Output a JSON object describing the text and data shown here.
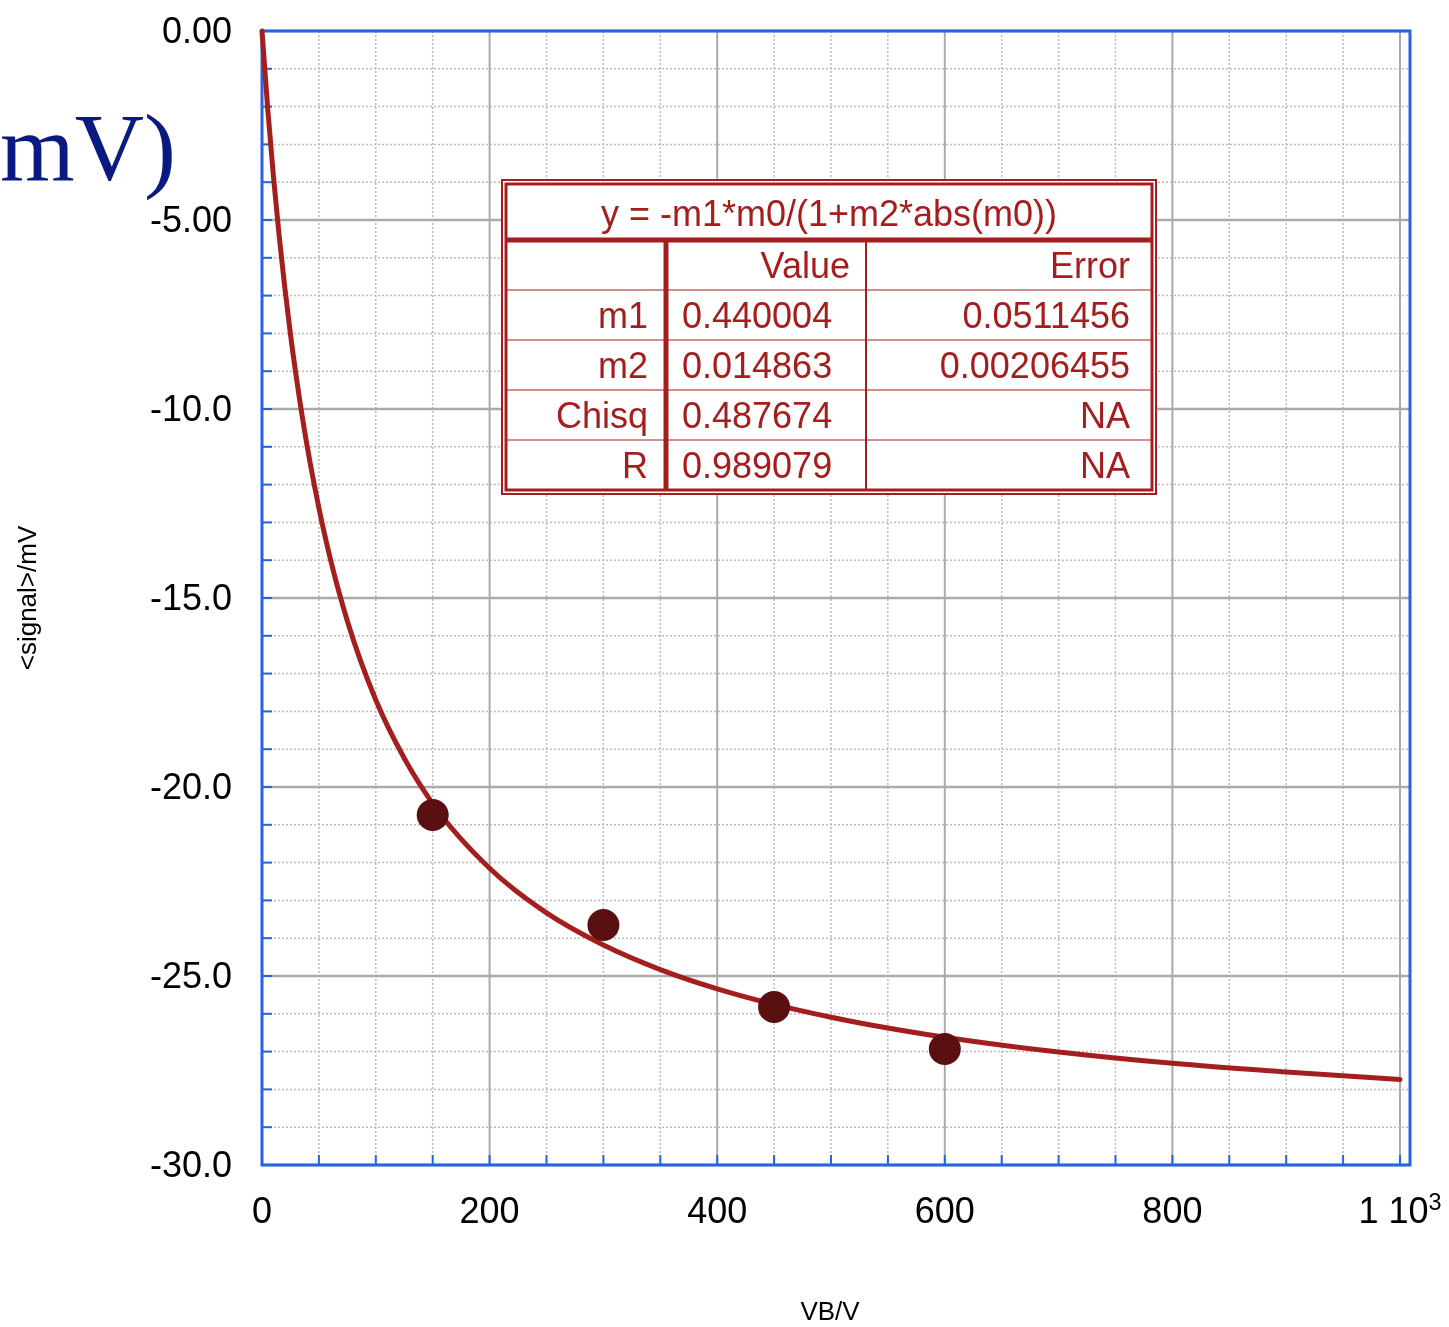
{
  "chart_data": {
    "type": "scatter",
    "xlabel": "VB/V",
    "ylabel": "<signal>/mV",
    "xlim": [
      0,
      1000
    ],
    "ylim": [
      -30,
      0
    ],
    "xticks": [
      {
        "value": 0,
        "label": "0"
      },
      {
        "value": 50,
        "label": null
      },
      {
        "value": 100,
        "label": null
      },
      {
        "value": 150,
        "label": null
      },
      {
        "value": 200,
        "label": "200"
      },
      {
        "value": 250,
        "label": null
      },
      {
        "value": 300,
        "label": null
      },
      {
        "value": 350,
        "label": null
      },
      {
        "value": 400,
        "label": "400"
      },
      {
        "value": 450,
        "label": null
      },
      {
        "value": 500,
        "label": null
      },
      {
        "value": 550,
        "label": null
      },
      {
        "value": 600,
        "label": "600"
      },
      {
        "value": 650,
        "label": null
      },
      {
        "value": 700,
        "label": null
      },
      {
        "value": 750,
        "label": null
      },
      {
        "value": 800,
        "label": "800"
      },
      {
        "value": 850,
        "label": null
      },
      {
        "value": 900,
        "label": null
      },
      {
        "value": 950,
        "label": null
      },
      {
        "value": 1000,
        "label": "1 10$^{3}$"
      }
    ],
    "yticks": [
      {
        "value": 0,
        "label": "0.00"
      },
      {
        "value": -1,
        "label": null
      },
      {
        "value": -2,
        "label": null
      },
      {
        "value": -3,
        "label": null
      },
      {
        "value": -4,
        "label": null
      },
      {
        "value": -5,
        "label": "-5.00"
      },
      {
        "value": -6,
        "label": null
      },
      {
        "value": -7,
        "label": null
      },
      {
        "value": -8,
        "label": null
      },
      {
        "value": -9,
        "label": null
      },
      {
        "value": -10,
        "label": "-10.0"
      },
      {
        "value": -11,
        "label": null
      },
      {
        "value": -12,
        "label": null
      },
      {
        "value": -13,
        "label": null
      },
      {
        "value": -14,
        "label": null
      },
      {
        "value": -15,
        "label": "-15.0"
      },
      {
        "value": -16,
        "label": null
      },
      {
        "value": -17,
        "label": null
      },
      {
        "value": -18,
        "label": null
      },
      {
        "value": -19,
        "label": null
      },
      {
        "value": -20,
        "label": "-20.0"
      },
      {
        "value": -21,
        "label": null
      },
      {
        "value": -22,
        "label": null
      },
      {
        "value": -23,
        "label": null
      },
      {
        "value": -24,
        "label": null
      },
      {
        "value": -25,
        "label": "-25.0"
      },
      {
        "value": -26,
        "label": null
      },
      {
        "value": -27,
        "label": null
      },
      {
        "value": -28,
        "label": null
      },
      {
        "value": -29,
        "label": null
      },
      {
        "value": -30,
        "label": "-30.0"
      }
    ],
    "grid": true,
    "series": [
      {
        "type": "line",
        "color": "#a51e1e",
        "marker": "none",
        "x": [
          0,
          5,
          10,
          15,
          20,
          25,
          35,
          50,
          60,
          75,
          100,
          125,
          150,
          200,
          250,
          300,
          350,
          400,
          450,
          500,
          600,
          700,
          800,
          900,
          1000
        ],
        "values": [
          0,
          -2.05,
          -3.83,
          -5.4,
          -6.78,
          -8.02,
          -10.13,
          -12.62,
          -13.96,
          -15.61,
          -17.7,
          -19.24,
          -20.44,
          -22.15,
          -23.33,
          -24.18,
          -24.83,
          -25.34,
          -25.75,
          -26.09,
          -26.62,
          -27.01,
          -27.31,
          -27.54,
          -27.74
        ]
      },
      {
        "color": "#5a1010",
        "marker": "circle",
        "x": [
          150,
          300,
          450,
          600
        ],
        "values": [
          -20.74,
          -23.65,
          -25.82,
          -26.93
        ]
      }
    ],
    "annotations": [
      "mV)",
      "y = -m1*m0/(1+m2*abs(m0))",
      "Value",
      "Error",
      "m1",
      "0.440004",
      "0.0511456",
      "m2",
      "0.014863",
      "0.00206455",
      "Chisq",
      "0.487674",
      "NA",
      "R",
      "0.989079",
      "NA"
    ]
  }
}
